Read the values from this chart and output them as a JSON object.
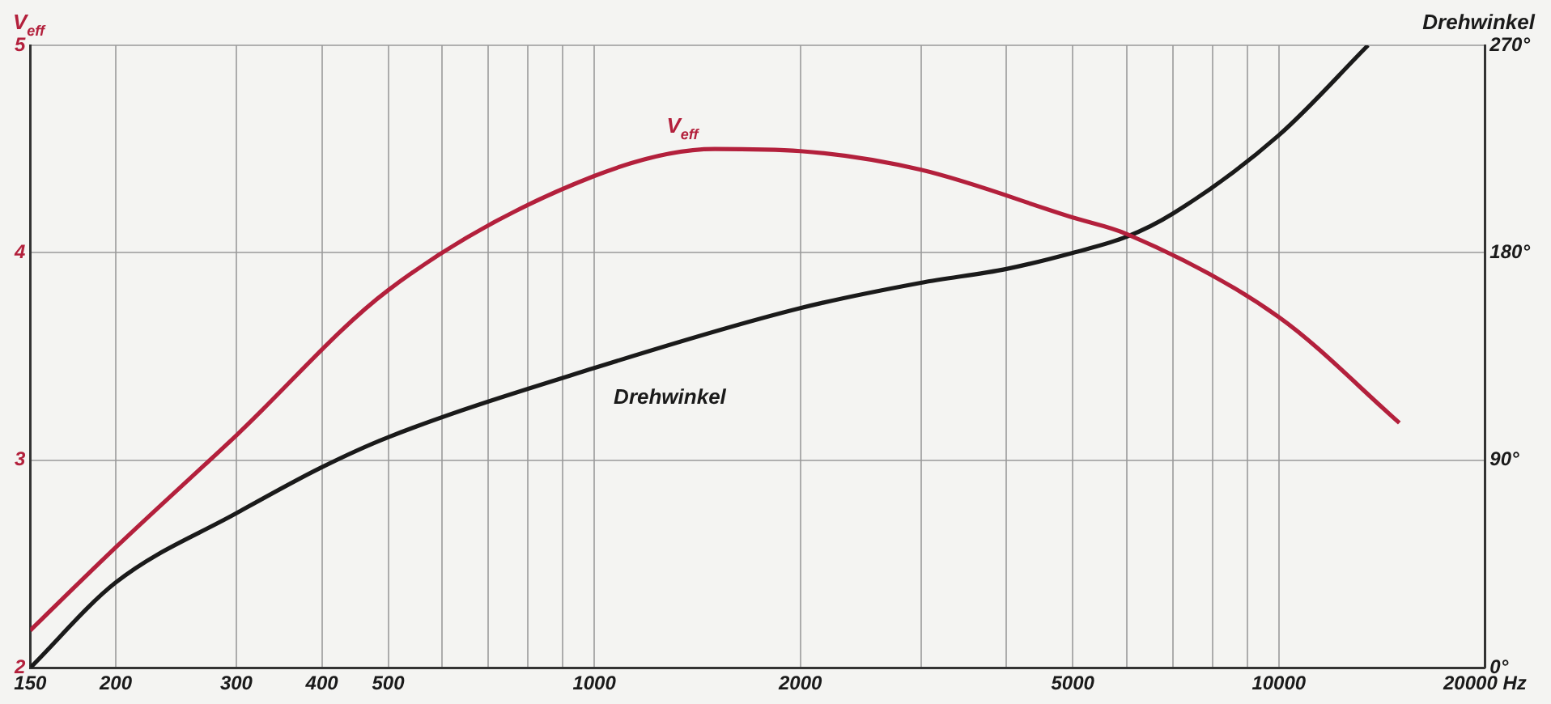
{
  "chart_data": {
    "type": "line",
    "ylabel": "V$_{eff}$",
    "y2label": "Drehwinkel",
    "log": "x",
    "xlim": [
      150,
      20000
    ],
    "xticks": [
      150,
      200,
      300,
      400,
      500,
      {
        "value": 600,
        "label": null
      },
      {
        "value": 700,
        "label": null
      },
      {
        "value": 800,
        "label": null
      },
      {
        "value": 900,
        "label": null
      },
      1000,
      2000,
      {
        "value": 3000,
        "label": null
      },
      {
        "value": 4000,
        "label": null
      },
      5000,
      {
        "value": 6000,
        "label": null
      },
      {
        "value": 7000,
        "label": null
      },
      {
        "value": 8000,
        "label": null
      },
      {
        "value": 9000,
        "label": null
      },
      10000,
      {
        "value": 20000,
        "label": "20000 Hz"
      }
    ],
    "ylim": [
      2,
      5
    ],
    "yticks": [
      2,
      3,
      4,
      5
    ],
    "y2lim": [
      0,
      270
    ],
    "y2ticks": [
      {
        "value": 0,
        "label": "0°"
      },
      {
        "value": 90,
        "label": "90°"
      },
      {
        "value": 180,
        "label": "180°"
      },
      {
        "value": 270,
        "label": "270°"
      }
    ],
    "grid": true,
    "legend": false,
    "marker": "none",
    "line_style": "solid",
    "series": [
      {
        "name": "V$_{eff}$",
        "color": "#b3203c",
        "x": [
          150,
          200,
          300,
          500,
          1000,
          1500,
          2000,
          3000,
          5000,
          6000,
          10000,
          15000
        ],
        "values": [
          2.18,
          2.58,
          3.12,
          3.82,
          4.37,
          4.5,
          4.49,
          4.4,
          4.17,
          4.09,
          3.69,
          3.18
        ]
      },
      {
        "name": "Drehwinkel",
        "color": "#1a1a1a",
        "axis": "y2",
        "x": [
          150,
          200,
          300,
          400,
          500,
          1000,
          2000,
          3000,
          4000,
          5000,
          6000,
          7000,
          10000,
          13500
        ],
        "values": [
          0,
          37,
          67,
          87,
          100,
          130,
          156,
          167,
          173,
          180,
          187,
          197,
          231,
          270
        ]
      }
    ]
  }
}
